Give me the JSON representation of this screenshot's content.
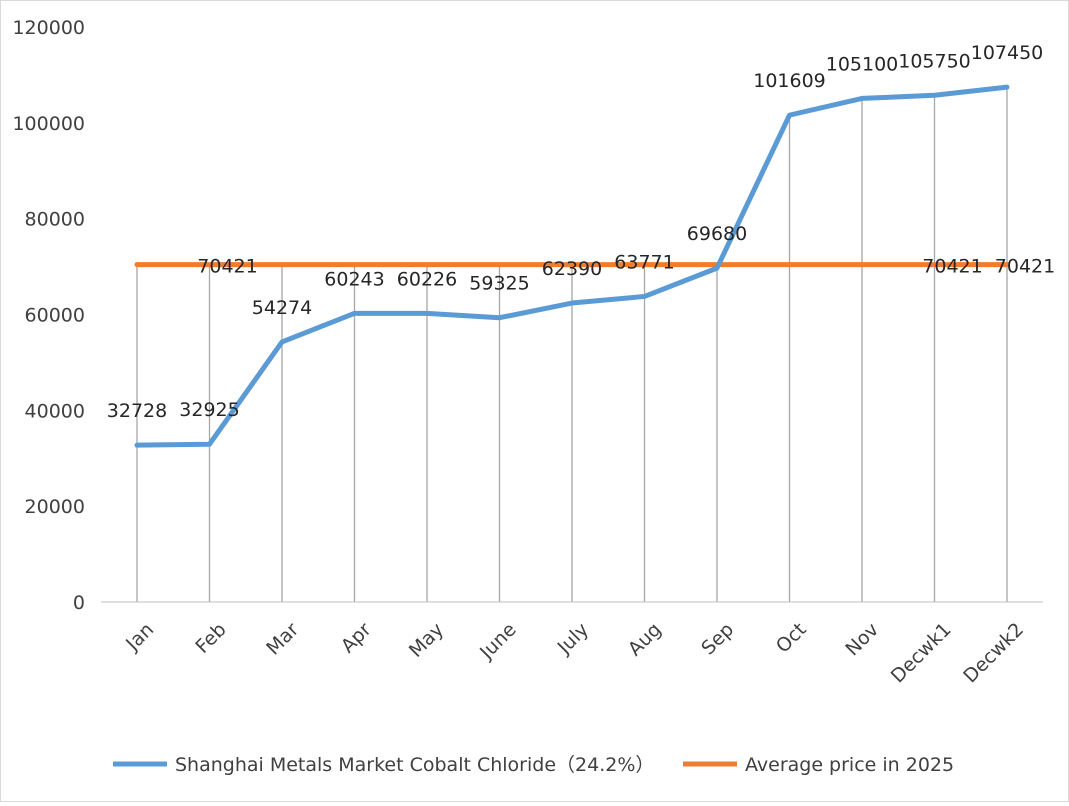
{
  "chart_data": {
    "type": "line",
    "categories": [
      "Jan",
      "Feb",
      "Mar",
      "Apr",
      "May",
      "June",
      "July",
      "Aug",
      "Sep",
      "Oct",
      "Nov",
      "Decwk1",
      "Decwk2"
    ],
    "series": [
      {
        "name": "Shanghai Metals Market Cobalt Chloride（24.2%）",
        "color": "#5b9bd5",
        "values": [
          32728,
          32925,
          54274,
          60243,
          60226,
          59325,
          62390,
          63771,
          69680,
          101609,
          105100,
          105750,
          107450
        ],
        "labels": [
          "32728",
          "32925",
          "54274",
          "60243",
          "60226",
          "59325",
          "62390",
          "63771",
          "69680",
          "101609",
          "105100",
          "105750",
          "107450"
        ]
      },
      {
        "name": "Average price in 2025",
        "color": "#ed7d31",
        "values": [
          70421,
          70421,
          70421,
          70421,
          70421,
          70421,
          70421,
          70421,
          70421,
          70421,
          70421,
          70421,
          70421
        ],
        "labeled_points": [
          {
            "index": 1,
            "label": "70421"
          },
          {
            "index": 11,
            "label": "70421"
          },
          {
            "index": 12,
            "label": "70421"
          }
        ]
      }
    ],
    "ylim": [
      0,
      120000
    ],
    "yticks": [
      "0",
      "20000",
      "40000",
      "60000",
      "80000",
      "100000",
      "120000"
    ],
    "ytick_values": [
      0,
      20000,
      40000,
      60000,
      80000,
      100000,
      120000
    ],
    "drop_lines": true,
    "gridlines": false,
    "legend_position": "bottom"
  }
}
